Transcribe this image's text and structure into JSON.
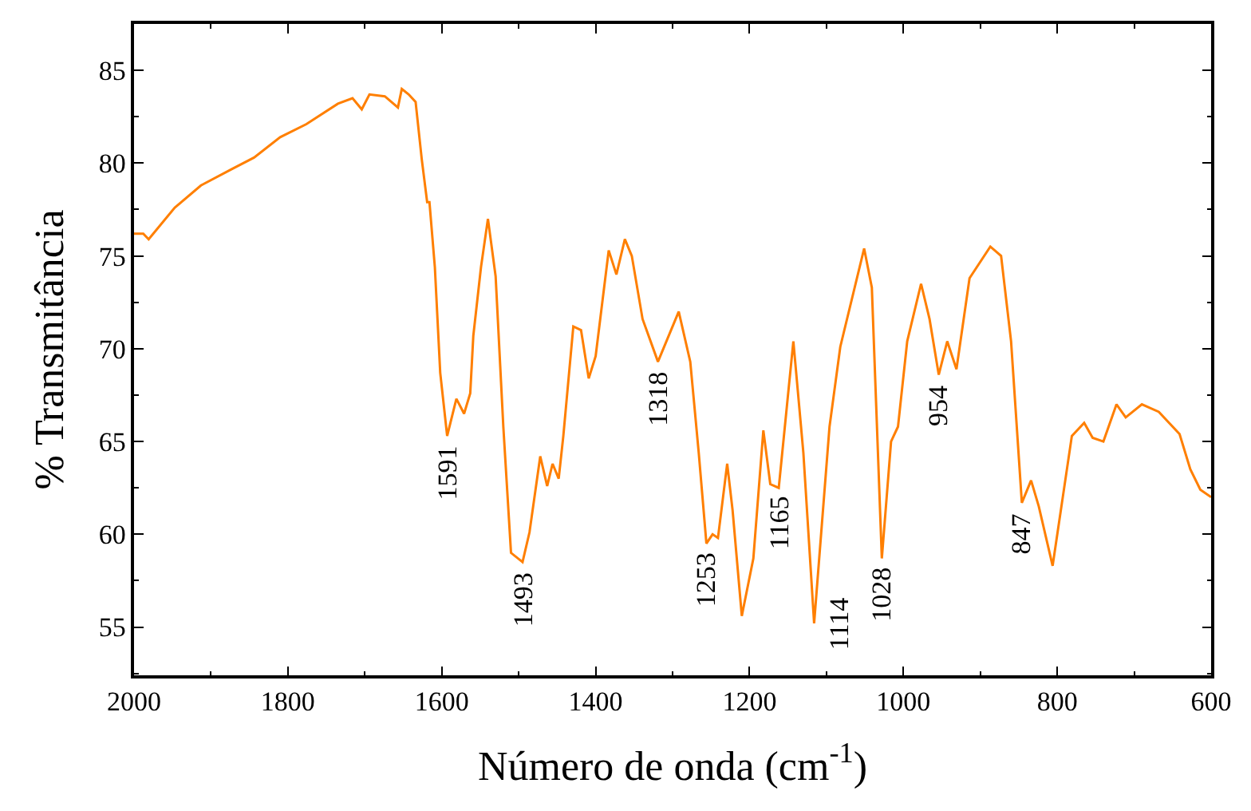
{
  "chart_data": {
    "type": "line",
    "xlabel": "Número de onda (cm$^{-1}$)",
    "ylabel": "% Transmitância",
    "xlim": [
      2000,
      600
    ],
    "xticks": [
      2000,
      1800,
      1600,
      1400,
      1200,
      1000,
      800,
      600
    ],
    "ylim": [
      52.4,
      87.5
    ],
    "yticks": [
      55,
      60,
      65,
      70,
      75,
      80,
      85
    ],
    "marker": "none",
    "line_style": "solid",
    "series": [
      {
        "color": "#ff7f00",
        "x": [
          2000,
          1988,
          1981,
          1947,
          1913,
          1872,
          1844,
          1810,
          1776,
          1735,
          1716,
          1704,
          1694,
          1674,
          1657,
          1652,
          1643,
          1634,
          1626,
          1619,
          1616,
          1609,
          1602,
          1593,
          1581,
          1571,
          1563,
          1559,
          1549,
          1540,
          1530,
          1520,
          1510,
          1495,
          1486,
          1472,
          1463,
          1456,
          1448,
          1442,
          1429,
          1419,
          1409,
          1400,
          1383,
          1373,
          1362,
          1353,
          1339,
          1319,
          1292,
          1277,
          1266,
          1256,
          1248,
          1241,
          1229,
          1222,
          1210,
          1195,
          1182,
          1173,
          1162,
          1143,
          1130,
          1116,
          1096,
          1082,
          1051,
          1041,
          1028,
          1016,
          1007,
          995,
          977,
          966,
          954,
          943,
          931,
          914,
          887,
          873,
          860,
          846,
          834,
          824,
          806,
          781,
          765,
          754,
          740,
          723,
          711,
          690,
          668,
          641,
          627,
          614,
          600
        ],
        "values": [
          76.2,
          76.2,
          75.9,
          77.6,
          78.8,
          79.7,
          80.3,
          81.4,
          82.1,
          83.2,
          83.5,
          82.9,
          83.7,
          83.6,
          83.0,
          84.0,
          83.7,
          83.3,
          80.2,
          77.9,
          77.9,
          74.4,
          68.7,
          65.3,
          67.3,
          66.5,
          67.6,
          70.7,
          74.4,
          77.0,
          73.9,
          65.8,
          59.0,
          58.5,
          60.1,
          64.2,
          62.6,
          63.8,
          63.0,
          65.3,
          71.2,
          71.0,
          68.4,
          69.6,
          75.3,
          74.0,
          75.9,
          75.0,
          71.6,
          69.3,
          72.0,
          69.3,
          64.4,
          59.5,
          60.0,
          59.8,
          63.8,
          61.3,
          55.6,
          58.7,
          65.6,
          62.7,
          62.5,
          70.4,
          64.4,
          55.2,
          65.8,
          70.1,
          75.4,
          73.3,
          58.7,
          65.0,
          65.8,
          70.4,
          73.5,
          71.6,
          68.6,
          70.4,
          68.9,
          73.8,
          75.5,
          75.0,
          70.4,
          61.7,
          62.9,
          61.5,
          58.3,
          65.3,
          66.0,
          65.2,
          65.0,
          67.0,
          66.3,
          67.0,
          66.6,
          65.4,
          63.5,
          62.4,
          62.0
        ]
      }
    ],
    "annotations": [
      {
        "text": "1591",
        "x": 1593,
        "y": 65.3
      },
      {
        "text": "1493",
        "x": 1495,
        "y": 58.5
      },
      {
        "text": "1318",
        "x": 1319,
        "y": 69.3
      },
      {
        "text": "1253",
        "x": 1256,
        "y": 59.5
      },
      {
        "text": "1165",
        "x": 1162,
        "y": 62.5
      },
      {
        "text": "1114",
        "x": 1116,
        "y": 55.2
      },
      {
        "text": "1028",
        "x": 1028,
        "y": 58.7
      },
      {
        "text": "954",
        "x": 954,
        "y": 68.6
      },
      {
        "text": "847",
        "x": 846,
        "y": 61.7
      }
    ]
  }
}
